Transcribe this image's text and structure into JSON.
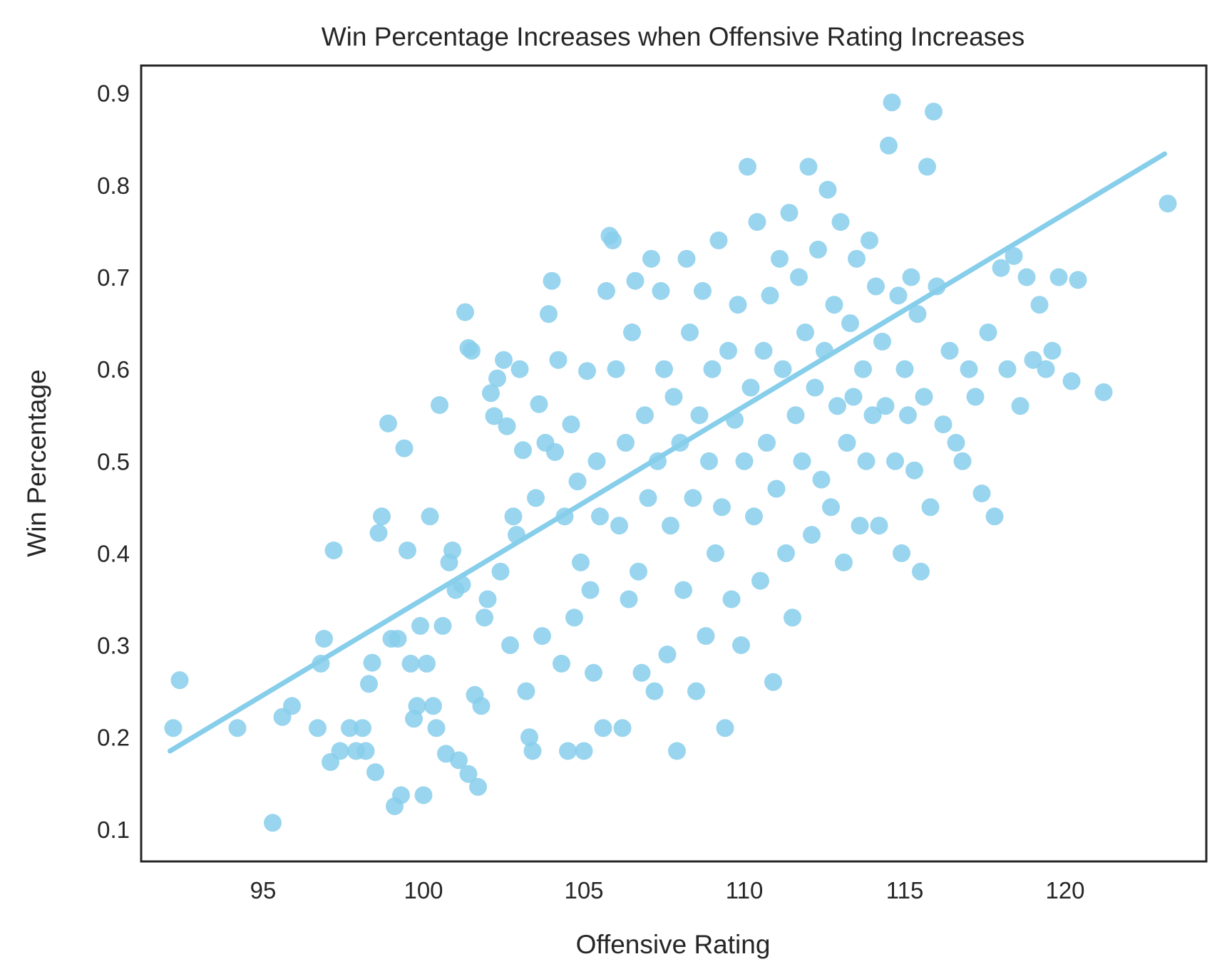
{
  "chart_data": {
    "type": "scatter",
    "title": "Win Percentage Increases when Offensive Rating Increases",
    "xlabel": "Offensive Rating",
    "ylabel": "Win Percentage",
    "xlim": [
      91.2,
      124.4
    ],
    "ylim": [
      0.065,
      0.93
    ],
    "xticks": [
      95,
      100,
      105,
      110,
      115,
      120
    ],
    "yticks": [
      0.1,
      0.2,
      0.3,
      0.4,
      0.5,
      0.6,
      0.7,
      0.8,
      0.9
    ],
    "grid": false,
    "legend": "none",
    "color": "#87CEEB",
    "trend_line": {
      "x": [
        92.1,
        123.1
      ],
      "y": [
        0.185,
        0.834
      ]
    },
    "series": [
      {
        "points": [
          [
            92.2,
            0.21
          ],
          [
            92.4,
            0.262
          ],
          [
            94.2,
            0.21
          ],
          [
            95.3,
            0.107
          ],
          [
            95.6,
            0.222
          ],
          [
            95.9,
            0.234
          ],
          [
            96.7,
            0.21
          ],
          [
            96.8,
            0.28
          ],
          [
            96.9,
            0.307
          ],
          [
            97.1,
            0.173
          ],
          [
            97.2,
            0.403
          ],
          [
            97.4,
            0.185
          ],
          [
            97.7,
            0.21
          ],
          [
            97.9,
            0.185
          ],
          [
            98.1,
            0.21
          ],
          [
            98.2,
            0.185
          ],
          [
            98.3,
            0.258
          ],
          [
            98.4,
            0.281
          ],
          [
            98.5,
            0.162
          ],
          [
            98.6,
            0.422
          ],
          [
            98.7,
            0.44
          ],
          [
            98.9,
            0.541
          ],
          [
            99.0,
            0.307
          ],
          [
            99.1,
            0.125
          ],
          [
            99.2,
            0.307
          ],
          [
            99.3,
            0.137
          ],
          [
            99.4,
            0.514
          ],
          [
            99.5,
            0.403
          ],
          [
            99.6,
            0.28
          ],
          [
            99.7,
            0.22
          ],
          [
            99.8,
            0.234
          ],
          [
            99.9,
            0.321
          ],
          [
            100.0,
            0.137
          ],
          [
            100.1,
            0.28
          ],
          [
            100.2,
            0.44
          ],
          [
            100.3,
            0.234
          ],
          [
            100.4,
            0.21
          ],
          [
            100.5,
            0.561
          ],
          [
            100.6,
            0.321
          ],
          [
            100.7,
            0.182
          ],
          [
            100.8,
            0.39
          ],
          [
            100.9,
            0.403
          ],
          [
            101.0,
            0.36
          ],
          [
            101.1,
            0.175
          ],
          [
            101.2,
            0.366
          ],
          [
            101.3,
            0.662
          ],
          [
            101.4,
            0.623
          ],
          [
            101.4,
            0.16
          ],
          [
            101.5,
            0.62
          ],
          [
            101.6,
            0.246
          ],
          [
            101.7,
            0.146
          ],
          [
            101.8,
            0.234
          ],
          [
            101.9,
            0.33
          ],
          [
            102.0,
            0.35
          ],
          [
            102.1,
            0.574
          ],
          [
            102.2,
            0.549
          ],
          [
            102.3,
            0.59
          ],
          [
            102.4,
            0.38
          ],
          [
            102.5,
            0.61
          ],
          [
            102.6,
            0.538
          ],
          [
            102.7,
            0.3
          ],
          [
            102.8,
            0.44
          ],
          [
            102.9,
            0.42
          ],
          [
            103.0,
            0.6
          ],
          [
            103.1,
            0.512
          ],
          [
            103.2,
            0.25
          ],
          [
            103.3,
            0.2
          ],
          [
            103.4,
            0.185
          ],
          [
            103.5,
            0.46
          ],
          [
            103.6,
            0.562
          ],
          [
            103.7,
            0.31
          ],
          [
            103.8,
            0.52
          ],
          [
            103.9,
            0.66
          ],
          [
            104.0,
            0.696
          ],
          [
            104.1,
            0.51
          ],
          [
            104.2,
            0.61
          ],
          [
            104.3,
            0.28
          ],
          [
            104.4,
            0.44
          ],
          [
            104.5,
            0.185
          ],
          [
            104.6,
            0.54
          ],
          [
            104.7,
            0.33
          ],
          [
            104.8,
            0.478
          ],
          [
            104.9,
            0.39
          ],
          [
            105.0,
            0.185
          ],
          [
            105.1,
            0.598
          ],
          [
            105.2,
            0.36
          ],
          [
            105.3,
            0.27
          ],
          [
            105.4,
            0.5
          ],
          [
            105.5,
            0.44
          ],
          [
            105.6,
            0.21
          ],
          [
            105.7,
            0.685
          ],
          [
            105.8,
            0.745
          ],
          [
            105.9,
            0.74
          ],
          [
            106.0,
            0.6
          ],
          [
            106.1,
            0.43
          ],
          [
            106.2,
            0.21
          ],
          [
            106.3,
            0.52
          ],
          [
            106.4,
            0.35
          ],
          [
            106.5,
            0.64
          ],
          [
            106.6,
            0.696
          ],
          [
            106.7,
            0.38
          ],
          [
            106.8,
            0.27
          ],
          [
            106.9,
            0.55
          ],
          [
            107.0,
            0.46
          ],
          [
            107.1,
            0.72
          ],
          [
            107.2,
            0.25
          ],
          [
            107.3,
            0.5
          ],
          [
            107.4,
            0.685
          ],
          [
            107.5,
            0.6
          ],
          [
            107.6,
            0.29
          ],
          [
            107.7,
            0.43
          ],
          [
            107.8,
            0.57
          ],
          [
            107.9,
            0.185
          ],
          [
            108.0,
            0.52
          ],
          [
            108.1,
            0.36
          ],
          [
            108.2,
            0.72
          ],
          [
            108.3,
            0.64
          ],
          [
            108.4,
            0.46
          ],
          [
            108.5,
            0.25
          ],
          [
            108.6,
            0.55
          ],
          [
            108.7,
            0.685
          ],
          [
            108.8,
            0.31
          ],
          [
            108.9,
            0.5
          ],
          [
            109.0,
            0.6
          ],
          [
            109.1,
            0.4
          ],
          [
            109.2,
            0.74
          ],
          [
            109.3,
            0.45
          ],
          [
            109.4,
            0.21
          ],
          [
            109.5,
            0.62
          ],
          [
            109.6,
            0.35
          ],
          [
            109.7,
            0.545
          ],
          [
            109.8,
            0.67
          ],
          [
            109.9,
            0.3
          ],
          [
            110.0,
            0.5
          ],
          [
            110.1,
            0.82
          ],
          [
            110.2,
            0.58
          ],
          [
            110.3,
            0.44
          ],
          [
            110.4,
            0.76
          ],
          [
            110.5,
            0.37
          ],
          [
            110.6,
            0.62
          ],
          [
            110.7,
            0.52
          ],
          [
            110.8,
            0.68
          ],
          [
            110.9,
            0.26
          ],
          [
            111.0,
            0.47
          ],
          [
            111.1,
            0.72
          ],
          [
            111.2,
            0.6
          ],
          [
            111.3,
            0.4
          ],
          [
            111.4,
            0.77
          ],
          [
            111.5,
            0.33
          ],
          [
            111.6,
            0.55
          ],
          [
            111.7,
            0.7
          ],
          [
            111.8,
            0.5
          ],
          [
            111.9,
            0.64
          ],
          [
            112.0,
            0.82
          ],
          [
            112.1,
            0.42
          ],
          [
            112.2,
            0.58
          ],
          [
            112.3,
            0.73
          ],
          [
            112.4,
            0.48
          ],
          [
            112.5,
            0.62
          ],
          [
            112.6,
            0.795
          ],
          [
            112.7,
            0.45
          ],
          [
            112.8,
            0.67
          ],
          [
            112.9,
            0.56
          ],
          [
            113.0,
            0.76
          ],
          [
            113.1,
            0.39
          ],
          [
            113.2,
            0.52
          ],
          [
            113.3,
            0.65
          ],
          [
            113.4,
            0.57
          ],
          [
            113.5,
            0.72
          ],
          [
            113.6,
            0.43
          ],
          [
            113.7,
            0.6
          ],
          [
            113.8,
            0.5
          ],
          [
            113.9,
            0.74
          ],
          [
            114.0,
            0.55
          ],
          [
            114.1,
            0.69
          ],
          [
            114.2,
            0.43
          ],
          [
            114.3,
            0.63
          ],
          [
            114.4,
            0.56
          ],
          [
            114.5,
            0.843
          ],
          [
            114.6,
            0.89
          ],
          [
            114.7,
            0.5
          ],
          [
            114.8,
            0.68
          ],
          [
            114.9,
            0.4
          ],
          [
            115.0,
            0.6
          ],
          [
            115.1,
            0.55
          ],
          [
            115.2,
            0.7
          ],
          [
            115.3,
            0.49
          ],
          [
            115.4,
            0.66
          ],
          [
            115.5,
            0.38
          ],
          [
            115.6,
            0.57
          ],
          [
            115.7,
            0.82
          ],
          [
            115.8,
            0.45
          ],
          [
            115.9,
            0.88
          ],
          [
            116.0,
            0.69
          ],
          [
            116.2,
            0.54
          ],
          [
            116.4,
            0.62
          ],
          [
            116.6,
            0.52
          ],
          [
            116.8,
            0.5
          ],
          [
            117.0,
            0.6
          ],
          [
            117.2,
            0.57
          ],
          [
            117.4,
            0.465
          ],
          [
            117.6,
            0.64
          ],
          [
            117.8,
            0.44
          ],
          [
            118.0,
            0.71
          ],
          [
            118.2,
            0.6
          ],
          [
            118.4,
            0.723
          ],
          [
            118.6,
            0.56
          ],
          [
            118.8,
            0.7
          ],
          [
            119.0,
            0.61
          ],
          [
            119.2,
            0.67
          ],
          [
            119.4,
            0.6
          ],
          [
            119.6,
            0.62
          ],
          [
            119.8,
            0.7
          ],
          [
            120.2,
            0.587
          ],
          [
            120.4,
            0.697
          ],
          [
            121.2,
            0.575
          ],
          [
            123.2,
            0.78
          ]
        ]
      }
    ]
  }
}
